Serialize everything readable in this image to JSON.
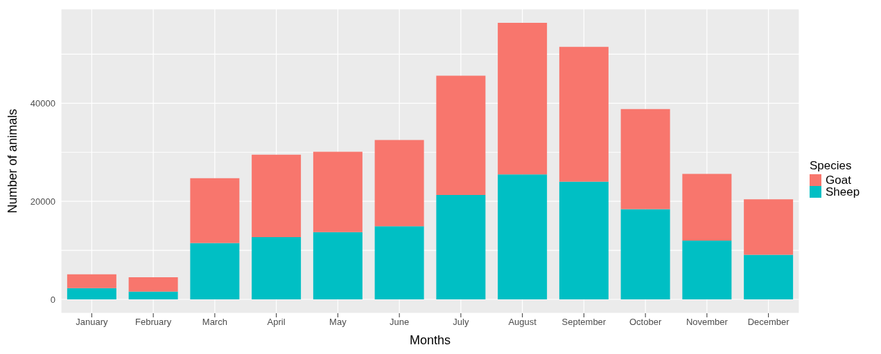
{
  "chart_data": {
    "type": "bar",
    "stacked": true,
    "xlabel": "Months",
    "ylabel": "Number of animals",
    "legend_title": "Species",
    "legend": "right",
    "grid": true,
    "categories": [
      "January",
      "February",
      "March",
      "April",
      "May",
      "June",
      "July",
      "August",
      "September",
      "October",
      "November",
      "December"
    ],
    "series": [
      {
        "name": "Sheep",
        "color": "#00bfc4",
        "values": [
          2300,
          1600,
          11500,
          12700,
          13700,
          14900,
          21300,
          25500,
          24000,
          18400,
          12000,
          9100
        ]
      },
      {
        "name": "Goat",
        "color": "#f8766d",
        "values": [
          2800,
          2900,
          13200,
          16800,
          16400,
          17600,
          24300,
          30900,
          27500,
          20400,
          13600,
          11300
        ]
      }
    ],
    "ylim": [
      -2820,
      59220
    ],
    "yticks": [
      0,
      {
        "value": 10000,
        "label": null
      },
      20000,
      {
        "value": 30000,
        "label": null
      },
      40000,
      {
        "value": 50000,
        "label": null
      }
    ]
  }
}
